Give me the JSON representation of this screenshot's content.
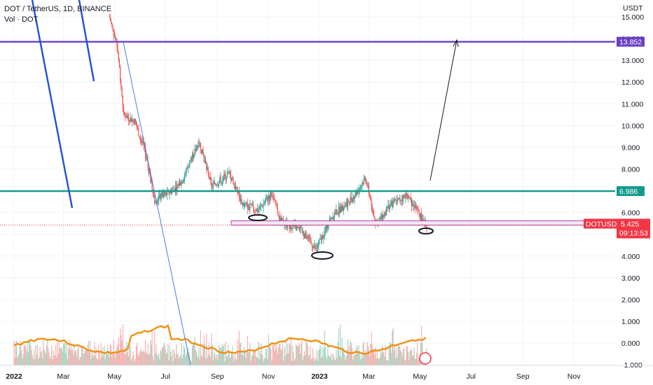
{
  "header": {
    "symbol_line": "DOT / TetherUS, 1D, BINANCE",
    "volume_line": "Vol · DOT"
  },
  "chart_data": {
    "type": "candlestick",
    "y_axis_unit": "USDT",
    "y_ticks": [
      "15.000",
      "14.000",
      "13.000",
      "12.000",
      "11.000",
      "10.000",
      "9.000",
      "8.000",
      "7.000",
      "6.000",
      "5.000",
      "4.000",
      "3.000",
      "2.000",
      "1.000",
      "0.000",
      "-1.000"
    ],
    "x_ticks": [
      "2022",
      "Mar",
      "May",
      "Jul",
      "Sep",
      "Nov",
      "2023",
      "Mar",
      "May",
      "Jul",
      "Sep",
      "Nov"
    ],
    "price_series_close_approx": [
      {
        "x": "2022-04-25",
        "y": 15.0
      },
      {
        "x": "2022-05-05",
        "y": 13.5
      },
      {
        "x": "2022-05-12",
        "y": 10.5
      },
      {
        "x": "2022-05-25",
        "y": 10.2
      },
      {
        "x": "2022-06-05",
        "y": 9.0
      },
      {
        "x": "2022-06-18",
        "y": 6.6
      },
      {
        "x": "2022-07-05",
        "y": 6.9
      },
      {
        "x": "2022-07-20",
        "y": 7.4
      },
      {
        "x": "2022-08-10",
        "y": 9.3
      },
      {
        "x": "2022-08-25",
        "y": 7.2
      },
      {
        "x": "2022-09-15",
        "y": 7.8
      },
      {
        "x": "2022-10-01",
        "y": 6.4
      },
      {
        "x": "2022-10-20",
        "y": 6.1
      },
      {
        "x": "2022-11-05",
        "y": 6.9
      },
      {
        "x": "2022-11-15",
        "y": 5.6
      },
      {
        "x": "2022-12-10",
        "y": 5.2
      },
      {
        "x": "2022-12-28",
        "y": 4.3
      },
      {
        "x": "2023-01-15",
        "y": 5.8
      },
      {
        "x": "2023-02-10",
        "y": 6.7
      },
      {
        "x": "2023-02-25",
        "y": 7.6
      },
      {
        "x": "2023-03-10",
        "y": 5.4
      },
      {
        "x": "2023-03-25",
        "y": 6.3
      },
      {
        "x": "2023-04-15",
        "y": 6.8
      },
      {
        "x": "2023-05-09",
        "y": 5.425
      }
    ],
    "levels": [
      {
        "label": "13.852",
        "value": 13.852,
        "color": "#6a3fc4"
      },
      {
        "label": "6.986",
        "value": 6.986,
        "color": "#159b8c"
      }
    ],
    "current_price": {
      "symbol": "DOTUSDT",
      "value": "5.425",
      "countdown": "09:13:53",
      "color": "#f23645"
    },
    "colors": {
      "up": "#26a69a",
      "down": "#ef5350",
      "volume_ma": "#f0900f",
      "trend": "#2050d8",
      "trendline_thin": "#4a7fe0"
    }
  }
}
